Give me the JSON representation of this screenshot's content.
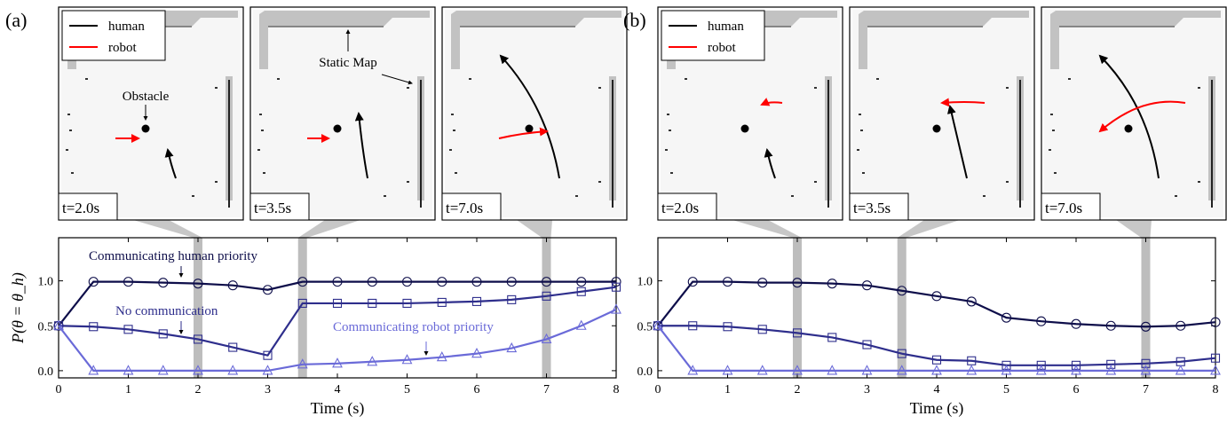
{
  "figure": {
    "panels": [
      {
        "id": "a",
        "label": "(a)",
        "snapshots": [
          {
            "time_label": "t=2.0s",
            "t": 2.0,
            "show_legend": true
          },
          {
            "time_label": "t=3.5s",
            "t": 3.5
          },
          {
            "time_label": "t=7.0s",
            "t": 7.0
          }
        ],
        "annotations": {
          "obstacle": "Obstacle",
          "static_map": "Static Map"
        },
        "legend": {
          "human": "human",
          "robot": "robot"
        },
        "series_labels": [
          {
            "text": "Communicating human priority",
            "series": 0
          },
          {
            "text": "No communication",
            "series": 1
          },
          {
            "text": "Communicating robot priority",
            "series": 2
          }
        ]
      },
      {
        "id": "b",
        "label": "(b)",
        "snapshots": [
          {
            "time_label": "t=2.0s",
            "t": 2.0,
            "show_legend": true
          },
          {
            "time_label": "t=3.5s",
            "t": 3.5
          },
          {
            "time_label": "t=7.0s",
            "t": 7.0
          }
        ],
        "legend": {
          "human": "human",
          "robot": "robot"
        }
      }
    ]
  },
  "colors": {
    "human": "#000000",
    "robot": "#ff0000",
    "series": [
      "#0e0e4a",
      "#2e2e8c",
      "#6a6ad8"
    ],
    "highlight": "#bdbdbd",
    "map_wall": "#c2c2c2"
  },
  "chart_data": [
    {
      "type": "line",
      "panel": "a",
      "xlabel": "Time (s)",
      "ylabel": "P(θ = θ_h)",
      "xlim": [
        0,
        8
      ],
      "ylim": [
        -0.08,
        1.48
      ],
      "xticks": [
        0,
        1,
        2,
        3,
        4,
        5,
        6,
        7,
        8
      ],
      "yticks": [
        0.0,
        0.5,
        1.0
      ],
      "ytick_labels": [
        "0.0",
        "0.5",
        "1.0"
      ],
      "highlight_times": [
        2.0,
        3.5,
        7.0
      ],
      "x": [
        0,
        0.5,
        1,
        1.5,
        2,
        2.5,
        3,
        3.5,
        4,
        4.5,
        5,
        5.5,
        6,
        6.5,
        7,
        7.5,
        8
      ],
      "series": [
        {
          "marker": "circle",
          "values": [
            0.5,
            0.99,
            0.99,
            0.98,
            0.97,
            0.95,
            0.9,
            0.99,
            0.99,
            0.99,
            0.99,
            0.99,
            0.99,
            0.99,
            0.99,
            0.99,
            0.99
          ]
        },
        {
          "marker": "square",
          "values": [
            0.5,
            0.49,
            0.46,
            0.41,
            0.35,
            0.26,
            0.17,
            0.75,
            0.75,
            0.75,
            0.75,
            0.76,
            0.77,
            0.79,
            0.83,
            0.88,
            0.93
          ]
        },
        {
          "marker": "triangle",
          "values": [
            0.5,
            0.0,
            0.0,
            0.0,
            0.0,
            0.0,
            0.0,
            0.07,
            0.08,
            0.1,
            0.12,
            0.15,
            0.19,
            0.25,
            0.35,
            0.5,
            0.68
          ]
        }
      ]
    },
    {
      "type": "line",
      "panel": "b",
      "xlabel": "Time (s)",
      "xlim": [
        0,
        8
      ],
      "ylim": [
        -0.08,
        1.48
      ],
      "xticks": [
        0,
        1,
        2,
        3,
        4,
        5,
        6,
        7,
        8
      ],
      "yticks": [
        0.0,
        0.5,
        1.0
      ],
      "ytick_labels": [
        "0.0",
        "0.5",
        "1.0"
      ],
      "highlight_times": [
        2.0,
        3.5,
        7.0
      ],
      "x": [
        0,
        0.5,
        1,
        1.5,
        2,
        2.5,
        3,
        3.5,
        4,
        4.5,
        5,
        5.5,
        6,
        6.5,
        7,
        7.5,
        8
      ],
      "series": [
        {
          "marker": "circle",
          "values": [
            0.5,
            0.99,
            0.99,
            0.98,
            0.98,
            0.97,
            0.95,
            0.89,
            0.83,
            0.77,
            0.59,
            0.55,
            0.52,
            0.5,
            0.49,
            0.5,
            0.54
          ]
        },
        {
          "marker": "square",
          "values": [
            0.5,
            0.5,
            0.49,
            0.46,
            0.42,
            0.37,
            0.29,
            0.19,
            0.12,
            0.11,
            0.06,
            0.06,
            0.06,
            0.07,
            0.08,
            0.1,
            0.14
          ]
        },
        {
          "marker": "triangle",
          "values": [
            0.5,
            0.0,
            0.0,
            0.0,
            0.0,
            0.0,
            0.0,
            0.0,
            0.0,
            0.0,
            0.0,
            0.0,
            0.0,
            0.0,
            0.0,
            0.0,
            0.0
          ]
        }
      ]
    }
  ]
}
